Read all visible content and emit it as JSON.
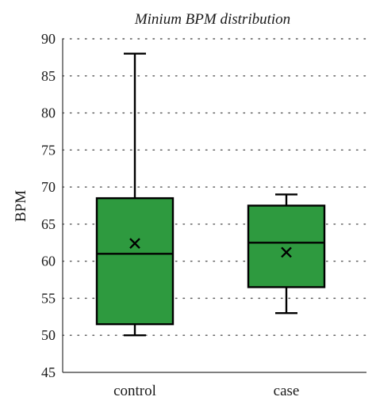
{
  "chart_data": {
    "type": "box",
    "title": "Minium BPM distribution",
    "xlabel": "",
    "ylabel": "BPM",
    "ylim": [
      45,
      90
    ],
    "yticks": [
      45,
      50,
      55,
      60,
      65,
      70,
      75,
      80,
      85,
      90
    ],
    "grid": "horizontal dotted",
    "categories": [
      "control",
      "case"
    ],
    "boxes": [
      {
        "category": "control",
        "min": 50,
        "q1": 51.5,
        "median": 61,
        "q3": 68.5,
        "max": 88,
        "mean": 62.4
      },
      {
        "category": "case",
        "min": 53,
        "q1": 56.5,
        "median": 62.5,
        "q3": 67.5,
        "max": 69,
        "mean": 61.2
      }
    ],
    "colors": {
      "box_fill": "#2e9a3f",
      "stroke": "#000000",
      "grid": "#555555",
      "axis": "#333333"
    }
  }
}
